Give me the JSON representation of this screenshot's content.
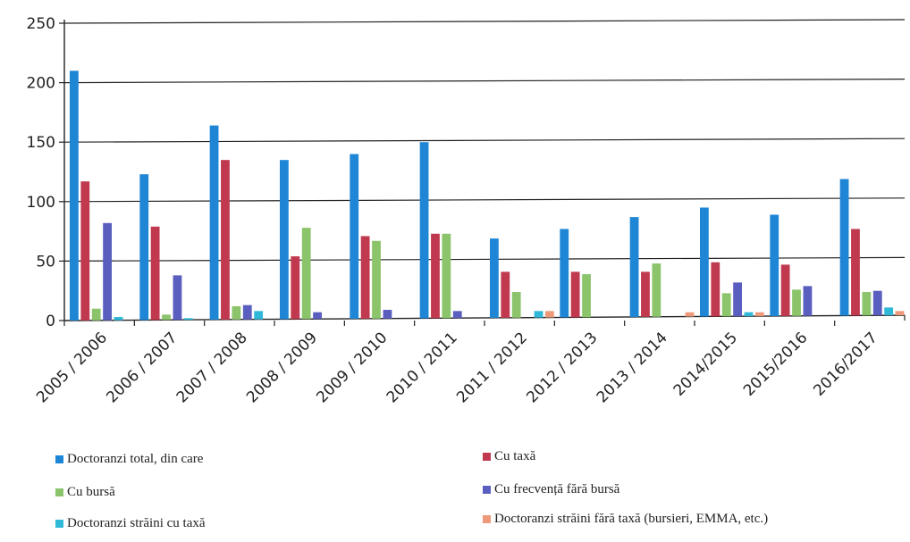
{
  "chart_data": {
    "type": "bar",
    "categories": [
      "2005 / 2006",
      "2006 / 2007",
      "2007 / 2008",
      "2008 / 2009",
      "2009 / 2010",
      "2010 / 2011",
      "2011 / 2012",
      "2012 / 2013",
      "2013 / 2014",
      "2014/2015",
      "2015/2016",
      "2016/2017"
    ],
    "series": [
      {
        "name": "Doctoranzi total, din care",
        "color": "#1f86d6",
        "values": [
          210,
          123,
          164,
          135,
          140,
          150,
          69,
          77,
          87,
          95,
          89,
          119
        ]
      },
      {
        "name": "Cu taxă",
        "color": "#c0394f",
        "values": [
          117,
          79,
          135,
          54,
          71,
          73,
          41,
          41,
          41,
          49,
          47,
          77
        ]
      },
      {
        "name": "Cu bursă",
        "color": "#8cc46c",
        "values": [
          10,
          5,
          12,
          78,
          67,
          73,
          24,
          39,
          48,
          23,
          26,
          24
        ]
      },
      {
        "name": "Cu frecvență fără bursă",
        "color": "#5a5fbf",
        "values": [
          82,
          38,
          13,
          7,
          9,
          8,
          0,
          0,
          0,
          32,
          29,
          25
        ]
      },
      {
        "name": "Doctoranzi străini cu taxă",
        "color": "#2fb8d8",
        "values": [
          3,
          2,
          8,
          0,
          0,
          0,
          8,
          0,
          0,
          7,
          0,
          11
        ]
      },
      {
        "name": "Doctoranzi străini fără taxă (bursieri, EMMA, etc.)",
        "color": "#ee9a7a",
        "values": [
          0,
          0,
          0,
          0,
          0,
          0,
          8,
          0,
          7,
          7,
          0,
          8
        ]
      }
    ],
    "yticks": [
      "0",
      "50",
      "100",
      "150",
      "200",
      "250"
    ],
    "ylim": [
      0,
      250
    ],
    "grid": true,
    "legend_position": "bottom"
  }
}
